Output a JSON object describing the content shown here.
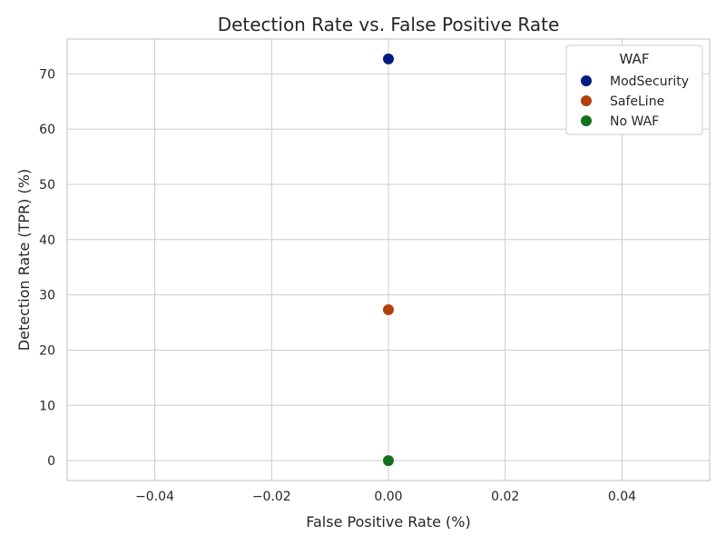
{
  "chart_data": {
    "type": "scatter",
    "title": "Detection Rate vs. False Positive Rate",
    "xlabel": "False Positive Rate (%)",
    "ylabel": "Detection Rate (TPR) (%)",
    "xlim": [
      -0.055,
      0.055
    ],
    "ylim": [
      -3.6,
      76.3
    ],
    "x_ticks": [
      -0.04,
      -0.02,
      0.0,
      0.02,
      0.04
    ],
    "x_tick_labels": [
      "−0.04",
      "−0.02",
      "0.00",
      "0.02",
      "0.04"
    ],
    "y_ticks": [
      0,
      10,
      20,
      30,
      40,
      50,
      60,
      70
    ],
    "y_tick_labels": [
      "0",
      "10",
      "20",
      "30",
      "40",
      "50",
      "60",
      "70"
    ],
    "grid": true,
    "legend": {
      "title": "WAF",
      "placement": "top-right"
    },
    "series": [
      {
        "name": "ModSecurity",
        "color": "#001c7f",
        "points": [
          {
            "x": 0.0,
            "y": 72.7
          }
        ]
      },
      {
        "name": "SafeLine",
        "color": "#b1400d",
        "points": [
          {
            "x": 0.0,
            "y": 27.3
          }
        ]
      },
      {
        "name": "No WAF",
        "color": "#12711c",
        "points": [
          {
            "x": 0.0,
            "y": 0.0
          }
        ]
      }
    ]
  }
}
